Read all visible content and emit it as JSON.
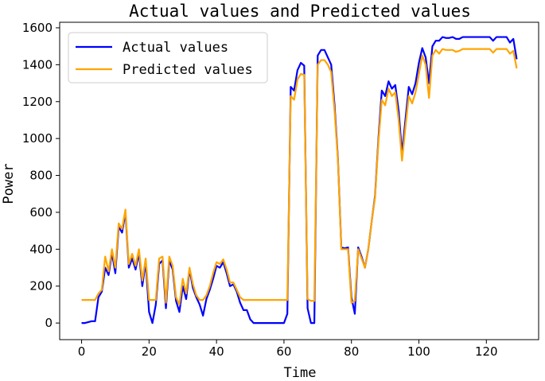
{
  "chart_data": {
    "type": "line",
    "title": "Actual values and Predicted values",
    "xlabel": "Time",
    "ylabel": "Power",
    "xlim": [
      -6.5,
      135.5
    ],
    "ylim": [
      -90,
      1630
    ],
    "x_ticks": [
      0,
      20,
      40,
      60,
      80,
      100,
      120
    ],
    "y_ticks": [
      0,
      200,
      400,
      600,
      800,
      1000,
      1200,
      1400,
      1600
    ],
    "legend_position": "top-left",
    "grid": false,
    "series": [
      {
        "name": "Actual values",
        "color": "#0000ff",
        "points": [
          [
            0,
            0
          ],
          [
            1,
            0
          ],
          [
            2,
            5
          ],
          [
            3,
            10
          ],
          [
            4,
            10
          ],
          [
            5,
            140
          ],
          [
            6,
            170
          ],
          [
            7,
            300
          ],
          [
            8,
            260
          ],
          [
            9,
            380
          ],
          [
            10,
            270
          ],
          [
            11,
            520
          ],
          [
            12,
            490
          ],
          [
            13,
            600
          ],
          [
            14,
            300
          ],
          [
            15,
            350
          ],
          [
            16,
            290
          ],
          [
            17,
            380
          ],
          [
            18,
            200
          ],
          [
            19,
            330
          ],
          [
            20,
            60
          ],
          [
            21,
            0
          ],
          [
            22,
            100
          ],
          [
            23,
            320
          ],
          [
            24,
            340
          ],
          [
            25,
            80
          ],
          [
            26,
            340
          ],
          [
            27,
            290
          ],
          [
            28,
            120
          ],
          [
            29,
            60
          ],
          [
            30,
            200
          ],
          [
            31,
            130
          ],
          [
            32,
            290
          ],
          [
            33,
            190
          ],
          [
            34,
            140
          ],
          [
            35,
            100
          ],
          [
            36,
            40
          ],
          [
            37,
            130
          ],
          [
            38,
            180
          ],
          [
            39,
            240
          ],
          [
            40,
            310
          ],
          [
            41,
            300
          ],
          [
            42,
            330
          ],
          [
            43,
            270
          ],
          [
            44,
            200
          ],
          [
            45,
            210
          ],
          [
            46,
            170
          ],
          [
            47,
            110
          ],
          [
            48,
            70
          ],
          [
            49,
            70
          ],
          [
            50,
            20
          ],
          [
            51,
            0
          ],
          [
            52,
            0
          ],
          [
            53,
            0
          ],
          [
            54,
            0
          ],
          [
            55,
            0
          ],
          [
            56,
            0
          ],
          [
            57,
            0
          ],
          [
            58,
            0
          ],
          [
            59,
            0
          ],
          [
            60,
            0
          ],
          [
            61,
            50
          ],
          [
            62,
            1280
          ],
          [
            63,
            1260
          ],
          [
            64,
            1370
          ],
          [
            65,
            1410
          ],
          [
            66,
            1395
          ],
          [
            67,
            80
          ],
          [
            68,
            0
          ],
          [
            69,
            0
          ],
          [
            70,
            1450
          ],
          [
            71,
            1480
          ],
          [
            72,
            1480
          ],
          [
            73,
            1440
          ],
          [
            74,
            1400
          ],
          [
            75,
            1180
          ],
          [
            76,
            890
          ],
          [
            77,
            410
          ],
          [
            78,
            405
          ],
          [
            79,
            410
          ],
          [
            80,
            140
          ],
          [
            81,
            50
          ],
          [
            82,
            410
          ],
          [
            83,
            360
          ],
          [
            84,
            300
          ],
          [
            85,
            400
          ],
          [
            86,
            550
          ],
          [
            87,
            690
          ],
          [
            88,
            1000
          ],
          [
            89,
            1260
          ],
          [
            90,
            1230
          ],
          [
            91,
            1310
          ],
          [
            92,
            1270
          ],
          [
            93,
            1290
          ],
          [
            94,
            1150
          ],
          [
            95,
            920
          ],
          [
            96,
            1100
          ],
          [
            97,
            1280
          ],
          [
            98,
            1240
          ],
          [
            99,
            1300
          ],
          [
            100,
            1410
          ],
          [
            101,
            1490
          ],
          [
            102,
            1440
          ],
          [
            103,
            1300
          ],
          [
            104,
            1500
          ],
          [
            105,
            1530
          ],
          [
            106,
            1530
          ],
          [
            107,
            1550
          ],
          [
            108,
            1545
          ],
          [
            109,
            1545
          ],
          [
            110,
            1550
          ],
          [
            111,
            1540
          ],
          [
            112,
            1540
          ],
          [
            113,
            1550
          ],
          [
            114,
            1550
          ],
          [
            115,
            1550
          ],
          [
            116,
            1550
          ],
          [
            117,
            1550
          ],
          [
            118,
            1550
          ],
          [
            119,
            1550
          ],
          [
            120,
            1550
          ],
          [
            121,
            1550
          ],
          [
            122,
            1530
          ],
          [
            123,
            1550
          ],
          [
            124,
            1550
          ],
          [
            125,
            1550
          ],
          [
            126,
            1550
          ],
          [
            127,
            1520
          ],
          [
            128,
            1540
          ],
          [
            129,
            1430
          ]
        ]
      },
      {
        "name": "Predicted values",
        "color": "#ffa500",
        "points": [
          [
            0,
            125
          ],
          [
            1,
            125
          ],
          [
            2,
            125
          ],
          [
            3,
            125
          ],
          [
            4,
            125
          ],
          [
            5,
            160
          ],
          [
            6,
            180
          ],
          [
            7,
            360
          ],
          [
            8,
            280
          ],
          [
            9,
            400
          ],
          [
            10,
            300
          ],
          [
            11,
            540
          ],
          [
            12,
            510
          ],
          [
            13,
            615
          ],
          [
            14,
            320
          ],
          [
            15,
            375
          ],
          [
            16,
            310
          ],
          [
            17,
            400
          ],
          [
            18,
            230
          ],
          [
            19,
            350
          ],
          [
            20,
            125
          ],
          [
            21,
            125
          ],
          [
            22,
            125
          ],
          [
            23,
            350
          ],
          [
            24,
            360
          ],
          [
            25,
            110
          ],
          [
            26,
            360
          ],
          [
            27,
            310
          ],
          [
            28,
            140
          ],
          [
            29,
            100
          ],
          [
            30,
            240
          ],
          [
            31,
            160
          ],
          [
            32,
            300
          ],
          [
            33,
            210
          ],
          [
            34,
            150
          ],
          [
            35,
            125
          ],
          [
            36,
            125
          ],
          [
            37,
            150
          ],
          [
            38,
            200
          ],
          [
            39,
            270
          ],
          [
            40,
            330
          ],
          [
            41,
            320
          ],
          [
            42,
            345
          ],
          [
            43,
            290
          ],
          [
            44,
            220
          ],
          [
            45,
            220
          ],
          [
            46,
            180
          ],
          [
            47,
            140
          ],
          [
            48,
            125
          ],
          [
            49,
            125
          ],
          [
            50,
            125
          ],
          [
            51,
            125
          ],
          [
            52,
            125
          ],
          [
            53,
            125
          ],
          [
            54,
            125
          ],
          [
            55,
            125
          ],
          [
            56,
            125
          ],
          [
            57,
            125
          ],
          [
            58,
            125
          ],
          [
            59,
            125
          ],
          [
            60,
            125
          ],
          [
            61,
            125
          ],
          [
            62,
            1230
          ],
          [
            63,
            1210
          ],
          [
            64,
            1320
          ],
          [
            65,
            1350
          ],
          [
            66,
            1345
          ],
          [
            67,
            130
          ],
          [
            68,
            120
          ],
          [
            69,
            120
          ],
          [
            70,
            1400
          ],
          [
            71,
            1425
          ],
          [
            72,
            1425
          ],
          [
            73,
            1400
          ],
          [
            74,
            1360
          ],
          [
            75,
            1150
          ],
          [
            76,
            880
          ],
          [
            77,
            400
          ],
          [
            78,
            400
          ],
          [
            79,
            400
          ],
          [
            80,
            110
          ],
          [
            81,
            120
          ],
          [
            82,
            400
          ],
          [
            83,
            350
          ],
          [
            84,
            300
          ],
          [
            85,
            400
          ],
          [
            86,
            550
          ],
          [
            87,
            680
          ],
          [
            88,
            980
          ],
          [
            89,
            1210
          ],
          [
            90,
            1180
          ],
          [
            91,
            1270
          ],
          [
            92,
            1230
          ],
          [
            93,
            1250
          ],
          [
            94,
            1100
          ],
          [
            95,
            880
          ],
          [
            96,
            1060
          ],
          [
            97,
            1230
          ],
          [
            98,
            1190
          ],
          [
            99,
            1250
          ],
          [
            100,
            1350
          ],
          [
            101,
            1450
          ],
          [
            102,
            1400
          ],
          [
            103,
            1220
          ],
          [
            104,
            1450
          ],
          [
            105,
            1480
          ],
          [
            106,
            1460
          ],
          [
            107,
            1485
          ],
          [
            108,
            1480
          ],
          [
            109,
            1480
          ],
          [
            110,
            1480
          ],
          [
            111,
            1470
          ],
          [
            112,
            1475
          ],
          [
            113,
            1485
          ],
          [
            114,
            1485
          ],
          [
            115,
            1485
          ],
          [
            116,
            1485
          ],
          [
            117,
            1485
          ],
          [
            118,
            1485
          ],
          [
            119,
            1485
          ],
          [
            120,
            1485
          ],
          [
            121,
            1485
          ],
          [
            122,
            1465
          ],
          [
            123,
            1485
          ],
          [
            124,
            1485
          ],
          [
            125,
            1485
          ],
          [
            126,
            1485
          ],
          [
            127,
            1460
          ],
          [
            128,
            1475
          ],
          [
            129,
            1380
          ]
        ]
      }
    ]
  }
}
